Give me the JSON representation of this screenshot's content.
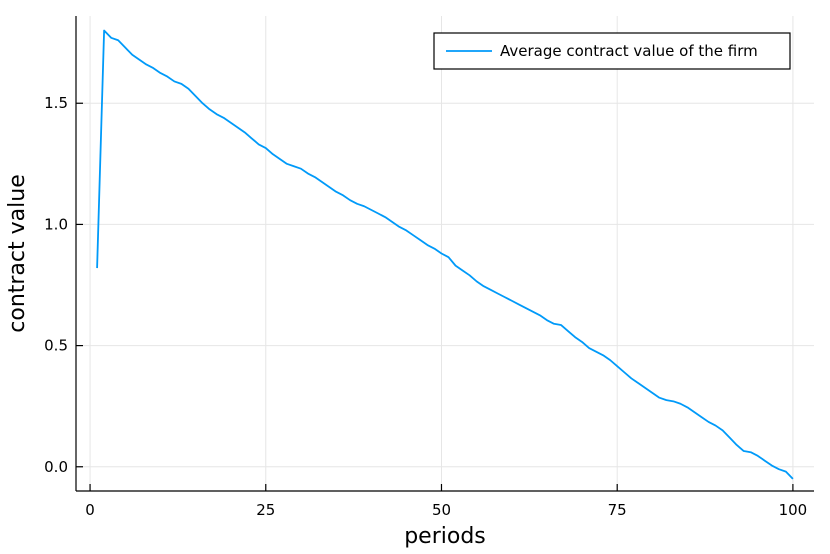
{
  "chart_data": {
    "type": "line",
    "title": "",
    "xlabel": "periods",
    "ylabel": "contract value",
    "xlim": [
      -2,
      103
    ],
    "ylim": [
      -0.1,
      1.86
    ],
    "xticks": [
      0,
      25,
      50,
      75,
      100
    ],
    "xtick_labels": [
      "0",
      "25",
      "50",
      "75",
      "100"
    ],
    "yticks": [
      0.0,
      0.5,
      1.0,
      1.5
    ],
    "ytick_labels": [
      "0.0",
      "0.5",
      "1.0",
      "1.5"
    ],
    "grid": true,
    "legend_position": "top-right",
    "series": [
      {
        "name": "Average contract value of the firm",
        "color": "#009af9",
        "x": [
          1,
          2,
          3,
          4,
          5,
          6,
          7,
          8,
          9,
          10,
          11,
          12,
          13,
          14,
          15,
          16,
          17,
          18,
          19,
          20,
          21,
          22,
          23,
          24,
          25,
          26,
          27,
          28,
          29,
          30,
          31,
          32,
          33,
          34,
          35,
          36,
          37,
          38,
          39,
          40,
          41,
          42,
          43,
          44,
          45,
          46,
          47,
          48,
          49,
          50,
          51,
          52,
          53,
          54,
          55,
          56,
          57,
          58,
          59,
          60,
          61,
          62,
          63,
          64,
          65,
          66,
          67,
          68,
          69,
          70,
          71,
          72,
          73,
          74,
          75,
          76,
          77,
          78,
          79,
          80,
          81,
          82,
          83,
          84,
          85,
          86,
          87,
          88,
          89,
          90,
          91,
          92,
          93,
          94,
          95,
          96,
          97,
          98,
          99,
          100
        ],
        "y": [
          0.82,
          1.8,
          1.77,
          1.76,
          1.73,
          1.7,
          1.68,
          1.66,
          1.645,
          1.625,
          1.61,
          1.59,
          1.58,
          1.56,
          1.53,
          1.5,
          1.475,
          1.455,
          1.44,
          1.42,
          1.4,
          1.38,
          1.355,
          1.33,
          1.315,
          1.29,
          1.27,
          1.25,
          1.24,
          1.23,
          1.21,
          1.195,
          1.175,
          1.155,
          1.135,
          1.12,
          1.1,
          1.085,
          1.075,
          1.06,
          1.045,
          1.03,
          1.01,
          0.99,
          0.975,
          0.955,
          0.935,
          0.915,
          0.9,
          0.88,
          0.865,
          0.83,
          0.81,
          0.79,
          0.765,
          0.745,
          0.73,
          0.715,
          0.7,
          0.685,
          0.67,
          0.655,
          0.64,
          0.625,
          0.605,
          0.59,
          0.585,
          0.56,
          0.535,
          0.515,
          0.49,
          0.475,
          0.46,
          0.44,
          0.415,
          0.39,
          0.365,
          0.345,
          0.325,
          0.305,
          0.285,
          0.275,
          0.27,
          0.26,
          0.245,
          0.225,
          0.205,
          0.185,
          0.17,
          0.15,
          0.12,
          0.09,
          0.065,
          0.06,
          0.045,
          0.025,
          0.005,
          -0.01,
          -0.02,
          -0.05
        ]
      }
    ]
  }
}
